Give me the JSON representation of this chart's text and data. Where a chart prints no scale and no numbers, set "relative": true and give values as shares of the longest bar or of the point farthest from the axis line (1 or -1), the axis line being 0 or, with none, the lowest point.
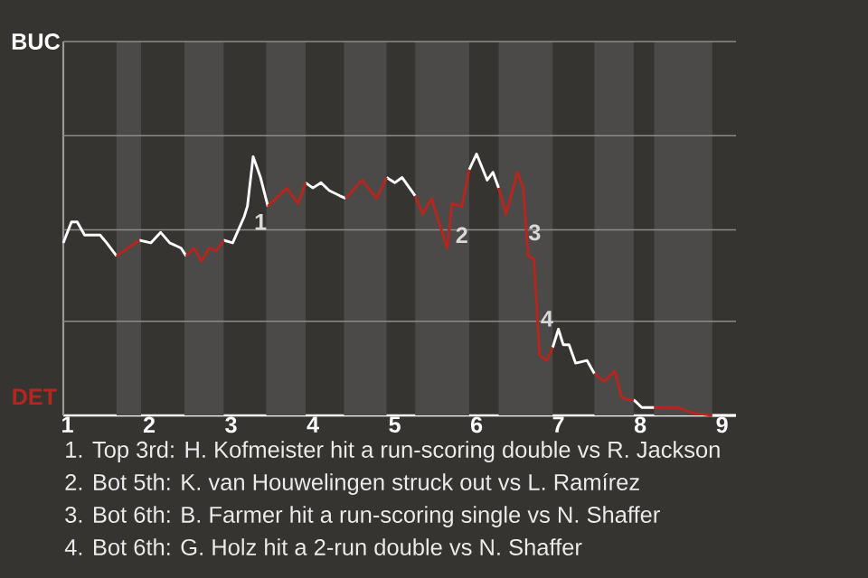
{
  "chart_data": {
    "type": "line",
    "relative": true,
    "xlim": [
      0.95,
      9.17
    ],
    "xticks": [
      1,
      2,
      3,
      4,
      5,
      6,
      7,
      8,
      9
    ],
    "line_style": "solid",
    "ref_lines": [
      {
        "axis": "y",
        "value": 0.36,
        "color": "#8c8c8a"
      },
      {
        "axis": "y",
        "value": 0.71,
        "color": "#8c8c8a"
      },
      {
        "axis": "y",
        "value": 1.07,
        "color": "#8c8c8a"
      },
      {
        "axis": "y",
        "value": 1.43,
        "color": "#8c8c8a"
      }
    ],
    "bands": [
      {
        "axis": "x",
        "from": 1.6,
        "to": 1.9,
        "color": "#4b4a48"
      },
      {
        "axis": "x",
        "from": 2.43,
        "to": 2.91,
        "color": "#4b4a48"
      },
      {
        "axis": "x",
        "from": 3.43,
        "to": 3.91,
        "color": "#4b4a48"
      },
      {
        "axis": "x",
        "from": 4.38,
        "to": 4.9,
        "color": "#4b4a48"
      },
      {
        "axis": "x",
        "from": 5.25,
        "to": 5.91,
        "color": "#4b4a48"
      },
      {
        "axis": "x",
        "from": 6.27,
        "to": 6.93,
        "color": "#4b4a48"
      },
      {
        "axis": "x",
        "from": 7.44,
        "to": 7.92,
        "color": "#4b4a48"
      },
      {
        "axis": "x",
        "from": 8.17,
        "to": 8.88,
        "color": "#4b4a48"
      }
    ],
    "series": [
      {
        "color": "#ffffff",
        "x": [
          0.95,
          1.05,
          1.12,
          1.21,
          1.4,
          1.48,
          1.6,
          null,
          1.88,
          2.02,
          2.14,
          2.25,
          2.39,
          2.45,
          null,
          2.91,
          3.02,
          3.16,
          3.2,
          3.27,
          3.36,
          3.45,
          null,
          3.91,
          4.0,
          4.1,
          4.2,
          4.33,
          4.4,
          null,
          4.9,
          5.0,
          5.09,
          5.25,
          null,
          5.91,
          6.0,
          6.13,
          6.2,
          6.27,
          null,
          6.93,
          7.0,
          7.06,
          7.13,
          7.21,
          7.35,
          7.44,
          null,
          7.92,
          8.02,
          8.17,
          null,
          8.88,
          9.17
        ],
        "values": [
          0.66,
          0.74,
          0.74,
          0.69,
          0.69,
          0.66,
          0.61,
          null,
          0.67,
          0.66,
          0.7,
          0.66,
          0.64,
          0.61,
          null,
          0.67,
          0.66,
          0.76,
          0.8,
          0.99,
          0.91,
          0.8,
          null,
          0.89,
          0.87,
          0.89,
          0.86,
          0.84,
          0.83,
          null,
          0.91,
          0.89,
          0.91,
          0.84,
          null,
          0.94,
          1,
          0.9,
          0.93,
          0.87,
          null,
          0.26,
          0.33,
          0.27,
          0.27,
          0.2,
          0.21,
          0.16,
          null,
          0.06,
          0.03,
          0.03,
          null,
          0,
          0
        ]
      },
      {
        "color": "#b5261e",
        "x": [
          1.6,
          1.88,
          null,
          2.45,
          2.55,
          2.64,
          2.73,
          2.82,
          2.91,
          null,
          3.45,
          3.68,
          3.82,
          3.91,
          null,
          4.4,
          4.6,
          4.78,
          4.9,
          null,
          5.25,
          5.34,
          5.45,
          5.57,
          5.64,
          5.7,
          5.82,
          5.91,
          null,
          6.27,
          6.36,
          6.5,
          6.57,
          6.63,
          6.7,
          6.77,
          6.86,
          6.93,
          null,
          7.44,
          7.56,
          7.69,
          7.77,
          7.85,
          7.92,
          null,
          8.17,
          8.46,
          8.63,
          8.88
        ],
        "values": [
          0.61,
          0.67,
          null,
          0.61,
          0.64,
          0.59,
          0.64,
          0.63,
          0.67,
          null,
          0.8,
          0.87,
          0.81,
          0.89,
          null,
          0.83,
          0.9,
          0.83,
          0.91,
          null,
          0.84,
          0.77,
          0.83,
          0.71,
          0.64,
          0.81,
          0.8,
          0.94,
          null,
          0.87,
          0.77,
          0.93,
          0.87,
          0.61,
          0.6,
          0.23,
          0.21,
          0.26,
          null,
          0.16,
          0.13,
          0.17,
          0.07,
          0.06,
          0.06,
          null,
          0.03,
          0.03,
          0.01,
          0
        ]
      }
    ],
    "annotations": [
      {
        "text": "1",
        "x": 3.36,
        "y": 0.74
      },
      {
        "text": "2",
        "x": 5.82,
        "y": 0.69
      },
      {
        "text": "3",
        "x": 6.71,
        "y": 0.7
      },
      {
        "text": "4",
        "x": 6.86,
        "y": 0.37
      },
      "BUC",
      "DET",
      "1. Top 3rd: H. Kofmeister hit a run-scoring double vs R. Jackson",
      "2. Bot 5th: K. van Houwelingen struck out vs L. Ramírez",
      "3. Bot 6th: B. Farmer hit a run-scoring single vs N. Shaffer",
      "4. Bot 6th: G. Holz hit a 2-run double vs N. Shaffer"
    ]
  }
}
